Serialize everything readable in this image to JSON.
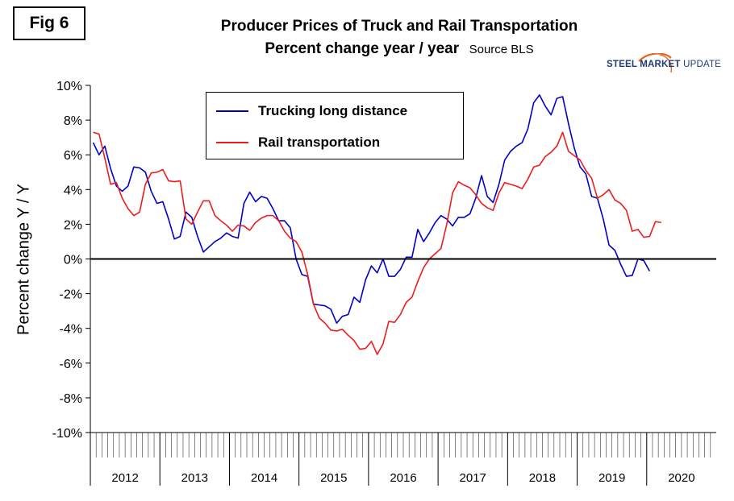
{
  "figure": {
    "badge": "Fig 6",
    "title": "Producer Prices of Truck and Rail Transportation",
    "subtitle": "Percent change year / year",
    "source": "Source BLS"
  },
  "logo": {
    "steel": "STEEL",
    "market": "MARKET",
    "update": "UPDATE",
    "colors": {
      "text": "#1f3c78",
      "swoosh": "#e8651f"
    }
  },
  "chart_data": {
    "type": "line",
    "title": "Producer Prices of Truck and Rail Transportation",
    "ylabel": "Percent change Y / Y",
    "xlabel": "",
    "ylim": [
      -10,
      10
    ],
    "y_ticks": [
      "10%",
      "8%",
      "6%",
      "4%",
      "2%",
      "0%",
      "-2%",
      "-4%",
      "-6%",
      "-8%",
      "-10%"
    ],
    "y_tick_values": [
      10,
      8,
      6,
      4,
      2,
      0,
      -2,
      -4,
      -6,
      -8,
      -10
    ],
    "x_start": "2012-01",
    "months_total": 108,
    "years": [
      "2012",
      "2013",
      "2014",
      "2015",
      "2016",
      "2017",
      "2018",
      "2019",
      "2020"
    ],
    "grid": false,
    "legend_position": "top-left",
    "series": [
      {
        "name": "Trucking long distance",
        "color": "#0000cc",
        "values": [
          6.7,
          6.0,
          6.5,
          5.2,
          4.2,
          3.9,
          4.2,
          5.3,
          5.25,
          5.0,
          3.9,
          3.2,
          3.3,
          2.3,
          1.15,
          1.3,
          2.7,
          2.4,
          1.3,
          0.4,
          0.7,
          1.0,
          1.2,
          1.5,
          1.3,
          1.2,
          3.2,
          3.85,
          3.3,
          3.6,
          3.5,
          2.9,
          2.2,
          2.2,
          1.8,
          0.0,
          -0.9,
          -1.0,
          -2.6,
          -2.65,
          -2.7,
          -2.9,
          -3.7,
          -3.3,
          -3.2,
          -2.2,
          -2.5,
          -1.2,
          -0.4,
          -0.8,
          0.0,
          -1.0,
          -1.0,
          -0.6,
          0.1,
          0.1,
          1.7,
          1.0,
          1.5,
          2.1,
          2.5,
          2.3,
          1.9,
          2.4,
          2.4,
          2.6,
          3.5,
          4.8,
          3.6,
          3.25,
          4.3,
          5.7,
          6.2,
          6.5,
          6.7,
          7.5,
          9.0,
          9.45,
          8.8,
          8.3,
          9.25,
          9.35,
          7.8,
          6.4,
          5.3,
          4.9,
          3.6,
          3.5,
          2.3,
          0.8,
          0.5,
          -0.3,
          -1.0,
          -0.95,
          0.0,
          -0.1,
          -0.7
        ]
      },
      {
        "name": "Rail transportation",
        "color": "#ee1c1c",
        "values": [
          7.3,
          7.2,
          5.8,
          4.3,
          4.4,
          3.5,
          2.9,
          2.5,
          2.7,
          4.3,
          4.95,
          5.0,
          5.15,
          4.5,
          4.45,
          4.5,
          2.3,
          2.0,
          2.7,
          3.35,
          3.35,
          2.5,
          2.2,
          1.95,
          1.6,
          1.95,
          1.9,
          1.65,
          2.1,
          2.35,
          2.5,
          2.5,
          2.2,
          1.6,
          1.2,
          1.0,
          0.4,
          -0.9,
          -2.6,
          -3.4,
          -3.7,
          -4.1,
          -4.15,
          -4.05,
          -4.4,
          -4.7,
          -5.2,
          -5.15,
          -4.75,
          -5.5,
          -4.9,
          -3.6,
          -3.65,
          -3.2,
          -2.5,
          -2.2,
          -1.3,
          -0.5,
          0.0,
          0.3,
          0.6,
          2.0,
          3.8,
          4.45,
          4.25,
          4.1,
          3.7,
          3.2,
          2.95,
          2.8,
          3.8,
          4.4,
          4.3,
          4.2,
          4.05,
          4.6,
          5.3,
          5.4,
          5.9,
          6.15,
          6.5,
          7.3,
          6.2,
          5.95,
          5.7,
          5.1,
          4.65,
          3.5,
          3.7,
          4.0,
          3.4,
          3.2,
          2.8,
          1.6,
          1.7,
          1.25,
          1.3,
          2.15,
          2.1
        ]
      }
    ]
  }
}
